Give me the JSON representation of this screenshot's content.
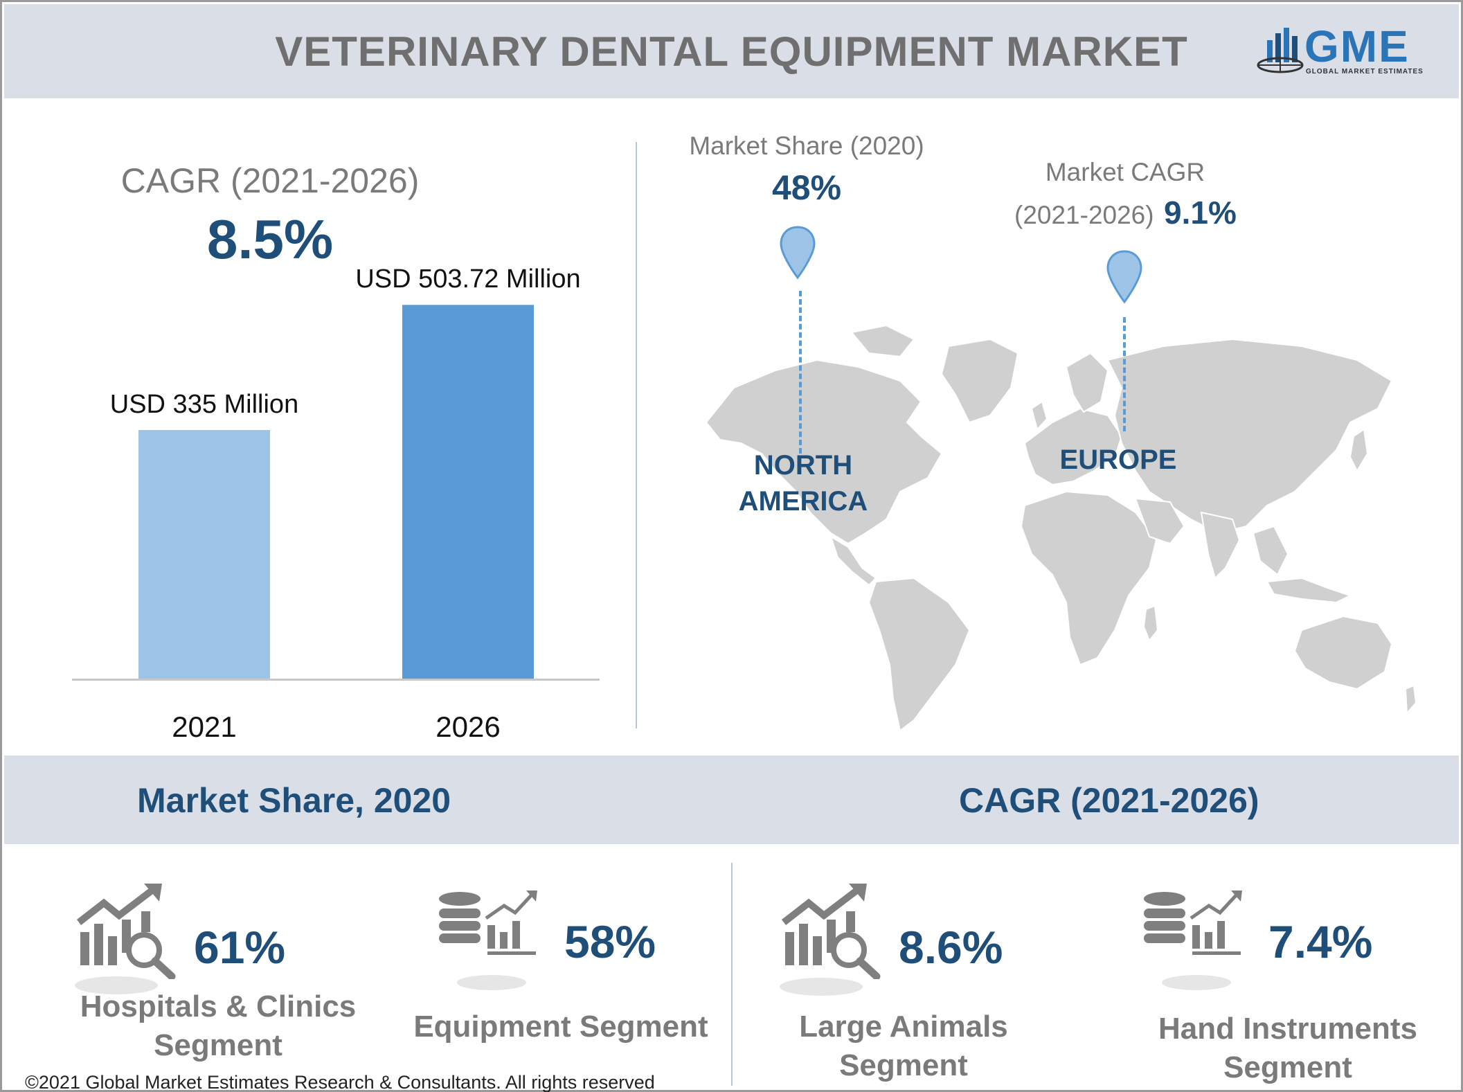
{
  "header": {
    "title": "VETERINARY DENTAL EQUIPMENT MARKET",
    "logo_text": "GME",
    "logo_sub": "GLOBAL MARKET ESTIMATES"
  },
  "cagr_block": {
    "label": "CAGR (2021-2026)",
    "value": "8.5%"
  },
  "chart_data": {
    "type": "bar",
    "categories": [
      "2021",
      "2026"
    ],
    "values": [
      335,
      503.72
    ],
    "value_labels": [
      "USD 335 Million",
      "USD 503.72 Million"
    ],
    "unit": "USD Million",
    "colors": [
      "#9dc3e6",
      "#5b9bd5"
    ],
    "ylim": [
      0,
      560
    ]
  },
  "map": {
    "north_america": {
      "label": "Market Share (2020)",
      "value": "48%",
      "region": "NORTH AMERICA"
    },
    "europe": {
      "label_line1": "Market CAGR",
      "label_line2": "(2021-2026)",
      "value": "9.1%",
      "region": "EUROPE"
    }
  },
  "band": {
    "left_title": "Market Share, 2020",
    "right_title": "CAGR (2021-2026)"
  },
  "segments": [
    {
      "value": "61%",
      "label": "Hospitals & Clinics Segment",
      "icon": "chart-search-icon"
    },
    {
      "value": "58%",
      "label": "Equipment Segment",
      "icon": "database-chart-icon"
    },
    {
      "value": "8.6%",
      "label": "Large Animals Segment",
      "icon": "chart-search-icon"
    },
    {
      "value": "7.4%",
      "label": "Hand Instruments Segment",
      "icon": "database-chart-icon"
    }
  ],
  "footer": {
    "copyright": "©2021 Global Market Estimates Research & Consultants. All rights reserved"
  },
  "colors": {
    "accent": "#1f4e79",
    "band": "#d9dee7",
    "pin": "#9dc3e6",
    "map_land": "#d0d0d0"
  }
}
